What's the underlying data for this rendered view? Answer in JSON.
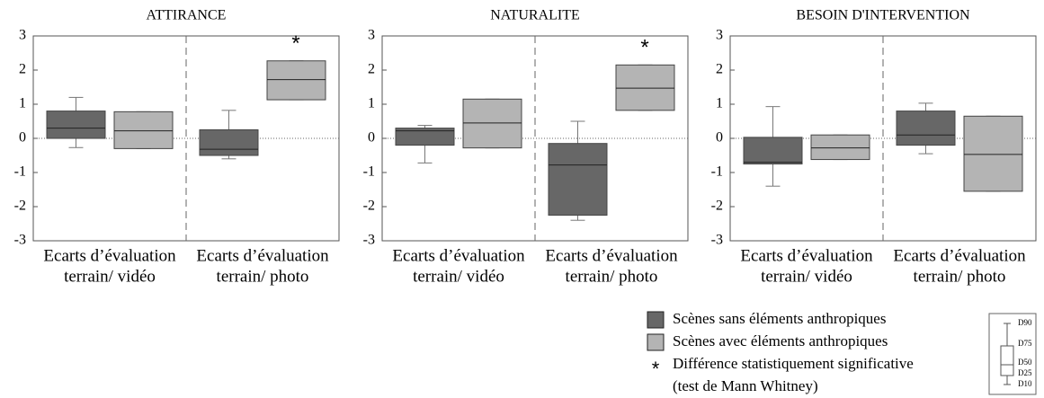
{
  "chart_data": [
    {
      "type": "box",
      "title": "ATTIRANCE",
      "categories": [
        [
          "Ecarts d’évaluation",
          "terrain/ vidéo"
        ],
        [
          "Ecarts d’évaluation",
          "terrain/ photo"
        ]
      ],
      "series": [
        {
          "color": "#676767",
          "values": [
            {
              "d10": -0.27,
              "d25": 0.0,
              "d50": 0.3,
              "d75": 0.8,
              "d90": 1.2
            },
            {
              "d10": -0.6,
              "d25": -0.5,
              "d50": -0.32,
              "d75": 0.25,
              "d90": 0.82
            }
          ]
        },
        {
          "color": "#b4b4b4",
          "values": [
            {
              "d10": -0.3,
              "d25": -0.3,
              "d50": 0.22,
              "d75": 0.78,
              "d90": 0.78
            },
            {
              "d10": 1.13,
              "d25": 1.13,
              "d50": 1.72,
              "d75": 2.27,
              "d90": 2.27
            }
          ]
        }
      ],
      "significant": [
        false,
        true
      ],
      "hline": 0,
      "ylim": [
        -3,
        3
      ],
      "yticks": [
        -3,
        -2,
        -1,
        0,
        1,
        2,
        3
      ]
    },
    {
      "type": "box",
      "title": "NATURALITE",
      "categories": [
        [
          "Ecarts d’évaluation",
          "terrain/ vidéo"
        ],
        [
          "Ecarts d’évaluation",
          "terrain/ photo"
        ]
      ],
      "series": [
        {
          "color": "#676767",
          "values": [
            {
              "d10": -0.72,
              "d25": -0.2,
              "d50": 0.22,
              "d75": 0.3,
              "d90": 0.38
            },
            {
              "d10": -2.4,
              "d25": -2.25,
              "d50": -0.78,
              "d75": -0.15,
              "d90": 0.5
            }
          ]
        },
        {
          "color": "#b4b4b4",
          "values": [
            {
              "d10": -0.28,
              "d25": -0.28,
              "d50": 0.45,
              "d75": 1.15,
              "d90": 1.15
            },
            {
              "d10": 0.82,
              "d25": 0.82,
              "d50": 1.47,
              "d75": 2.15,
              "d90": 2.15
            }
          ]
        }
      ],
      "significant": [
        false,
        true
      ],
      "hline": 0,
      "ylim": [
        -3,
        3
      ],
      "yticks": [
        -3,
        -2,
        -1,
        0,
        1,
        2,
        3
      ]
    },
    {
      "type": "box",
      "title": "BESOIN D'INTERVENTION",
      "categories": [
        [
          "Ecarts d’évaluation",
          "terrain/ vidéo"
        ],
        [
          "Ecarts d’évaluation",
          "terrain/ photo"
        ]
      ],
      "series": [
        {
          "color": "#676767",
          "values": [
            {
              "d10": -1.4,
              "d25": -0.75,
              "d50": -0.7,
              "d75": 0.03,
              "d90": 0.93
            },
            {
              "d10": -0.45,
              "d25": -0.2,
              "d50": 0.1,
              "d75": 0.8,
              "d90": 1.03
            }
          ]
        },
        {
          "color": "#b4b4b4",
          "values": [
            {
              "d10": -0.62,
              "d25": -0.62,
              "d50": -0.28,
              "d75": 0.1,
              "d90": 0.1
            },
            {
              "d10": -1.55,
              "d25": -1.55,
              "d50": -0.47,
              "d75": 0.65,
              "d90": 0.65
            }
          ]
        }
      ],
      "significant": [
        false,
        false
      ],
      "hline": 0,
      "ylim": [
        -3,
        3
      ],
      "yticks": [
        -3,
        -2,
        -1,
        0,
        1,
        2,
        3
      ]
    }
  ],
  "legend": {
    "entries": [
      "Scènes sans éléments anthropiques",
      "Scènes avec éléments anthropiques"
    ],
    "symbol": "*",
    "note": [
      "Différence statistiquement significative",
      "(test de Mann Whitney)"
    ]
  },
  "key": {
    "labels": [
      "D90",
      "D75",
      "D50",
      "D25",
      "D10"
    ]
  }
}
